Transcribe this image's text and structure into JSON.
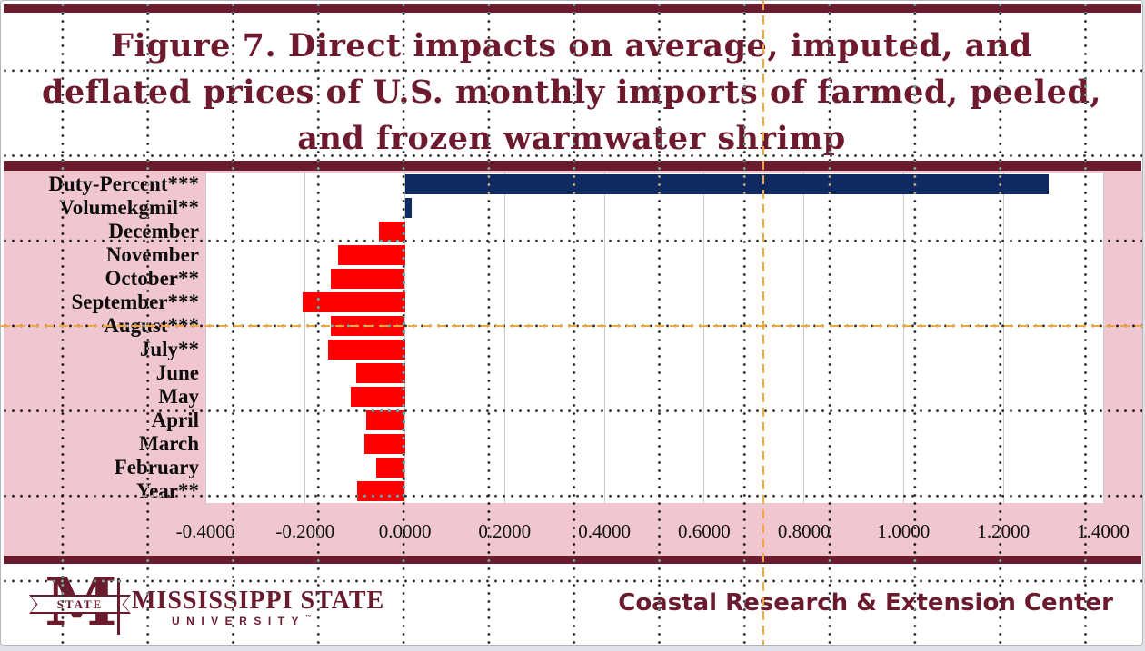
{
  "slide": {
    "title_lines": [
      "Figure 7. Direct impacts on average, imputed, and",
      "deflated prices of U.S. monthly imports of farmed, peeled,",
      "and frozen warmwater shrimp"
    ]
  },
  "chart_data": {
    "type": "bar",
    "orientation": "horizontal",
    "title": "Figure 7. Direct impacts on average, imputed, and deflated prices of U.S. monthly imports of farmed, peeled, and frozen warmwater shrimp",
    "categories": [
      "Duty-Percent***",
      "Volumekgmil**",
      "December",
      "November",
      "October**",
      "September***",
      "August***",
      "July**",
      "June",
      "May",
      "April",
      "March",
      "February",
      "Year**"
    ],
    "values": [
      1.29,
      0.013,
      -0.053,
      -0.135,
      -0.148,
      -0.205,
      -0.148,
      -0.155,
      -0.098,
      -0.108,
      -0.078,
      -0.082,
      -0.058,
      -0.095
    ],
    "bar_colors": [
      "#0e2a60",
      "#0e2a60",
      "#fe0000",
      "#fe0000",
      "#fe0000",
      "#fe0000",
      "#fe0000",
      "#fe0000",
      "#fe0000",
      "#fe0000",
      "#fe0000",
      "#fe0000",
      "#fe0000",
      "#fe0000"
    ],
    "xlim": [
      -0.4,
      1.4
    ],
    "x_ticks": [
      -0.4,
      -0.2,
      0.0,
      0.2,
      0.4,
      0.6,
      0.8,
      1.0,
      1.2,
      1.4
    ],
    "x_tick_labels": [
      "-0.4000",
      "-0.2000",
      "0.0000",
      "0.2000",
      "0.4000",
      "0.6000",
      "0.8000",
      "1.0000",
      "1.2000",
      "1.4000"
    ],
    "grid": true,
    "legend": false,
    "xlabel": "",
    "ylabel": ""
  },
  "footer": {
    "logo_letter": "M",
    "logo_banner": "STATE",
    "wordmark_line1": "MISSISSIPPI STATE",
    "wordmark_line2": "UNIVERSITY",
    "trademark": "™",
    "right_text": "Coastal Research & Extension Center"
  },
  "colors": {
    "maroon": "#6b1b2e",
    "pink": "#f0c6d0",
    "navy": "#0e2a60",
    "red": "#fe0000",
    "gridline": "#c9c9c9",
    "guide_orange": "#f4a636",
    "plot_bg": "#ffffff"
  }
}
